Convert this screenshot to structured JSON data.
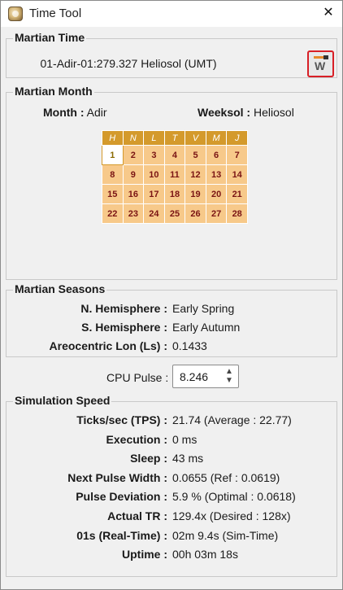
{
  "window": {
    "title": "Time Tool"
  },
  "martian_time": {
    "legend": "Martian Time",
    "text": "01-Adir-01:279.327 Heliosol (UMT)"
  },
  "martian_month": {
    "legend": "Martian Month",
    "month_label": "Month :",
    "month_value": "Adir",
    "weeksol_label": "Weeksol :",
    "weeksol_value": "Heliosol",
    "calendar": {
      "headers": [
        "H",
        "N",
        "L",
        "T",
        "V",
        "M",
        "J"
      ],
      "weeks": [
        [
          "1",
          "2",
          "3",
          "4",
          "5",
          "6",
          "7"
        ],
        [
          "8",
          "9",
          "10",
          "11",
          "12",
          "13",
          "14"
        ],
        [
          "15",
          "16",
          "17",
          "18",
          "19",
          "20",
          "21"
        ],
        [
          "22",
          "23",
          "24",
          "25",
          "26",
          "27",
          "28"
        ]
      ],
      "selected_day": "1"
    }
  },
  "martian_seasons": {
    "legend": "Martian Seasons",
    "rows": [
      {
        "label": "N. Hemisphere :",
        "value": "Early Spring"
      },
      {
        "label": "S. Hemisphere :",
        "value": "Early Autumn"
      },
      {
        "label": "Areocentric Lon (Ls) :",
        "value": "0.1433"
      }
    ]
  },
  "cpu_pulse": {
    "label": "CPU Pulse :",
    "value": "8.246"
  },
  "simulation_speed": {
    "legend": "Simulation Speed",
    "rows": [
      {
        "label": "Ticks/sec (TPS) :",
        "value": "21.74 (Average : 22.77)"
      },
      {
        "label": "Execution :",
        "value": "0 ms"
      },
      {
        "label": "Sleep :",
        "value": "43 ms"
      },
      {
        "label": "Next Pulse Width :",
        "value": "0.0655 (Ref : 0.0619)"
      },
      {
        "label": "Pulse Deviation :",
        "value": "5.9 % (Optimal : 0.0618)"
      },
      {
        "label": "Actual TR :",
        "value": "129.4x (Desired : 128x)"
      },
      {
        "label": "01s (Real-Time) :",
        "value": "02m 9.4s (Sim-Time)"
      },
      {
        "label": "Uptime :",
        "value": "00h 03m 18s"
      }
    ]
  },
  "icons": {
    "app": "mars-clock-app-icon",
    "close": "close-icon",
    "marstime_button": "marstime-calendar-icon",
    "spinner": "chevron-up-down-icon"
  },
  "colors": {
    "calendar_header": "#d49a2c",
    "calendar_cell": "#f7c98a",
    "calendar_text": "#7a1414",
    "button_border": "#d81f26"
  }
}
